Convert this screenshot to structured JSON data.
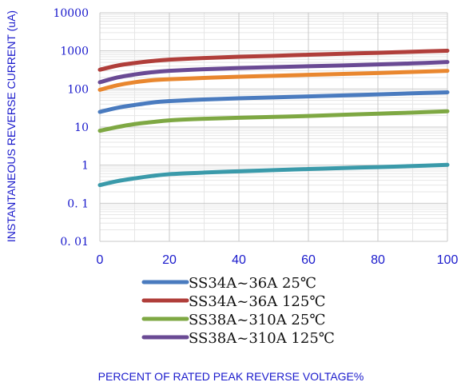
{
  "chart_data": {
    "type": "line",
    "title": "",
    "xlabel": "PERCENT OF RATED PEAK REVERSE VOLTAGE%",
    "ylabel": "INSTANTANEOUS REVERSE CURRENT (uA)",
    "xlim": [
      0,
      100
    ],
    "ylim": [
      0.01,
      10000
    ],
    "yscale": "log",
    "grid": true,
    "legend_position": "bottom",
    "x_ticks": [
      "0",
      "20",
      "40",
      "60",
      "80",
      "100"
    ],
    "y_ticks": [
      "10000",
      "1000",
      "100",
      "10",
      "1",
      "0. 1",
      "0. 01"
    ],
    "x": [
      0,
      5,
      10,
      15,
      20,
      30,
      40,
      50,
      60,
      70,
      80,
      90,
      100
    ],
    "series": [
      {
        "name": "SS34A~36A 25℃",
        "color": "#4a7bbf",
        "values": [
          25,
          32,
          38,
          44,
          48,
          53,
          57,
          60,
          64,
          68,
          72,
          77,
          82
        ],
        "in_legend": true
      },
      {
        "name": "SS34A~36A 125℃",
        "color": "#b03e3a",
        "values": [
          320,
          410,
          480,
          540,
          590,
          650,
          700,
          740,
          790,
          840,
          890,
          950,
          1010
        ],
        "in_legend": true
      },
      {
        "name": "SS38A~310A 25℃",
        "color": "#7ea843",
        "values": [
          8,
          10,
          12,
          13.5,
          15,
          16.5,
          17.5,
          18.5,
          19.5,
          21,
          22.5,
          24,
          26
        ],
        "in_legend": true
      },
      {
        "name": "SS38A~310A 125℃",
        "color": "#6a4a94",
        "values": [
          150,
          200,
          240,
          275,
          300,
          330,
          355,
          375,
          395,
          415,
          440,
          470,
          510
        ],
        "in_legend": true
      },
      {
        "name": "",
        "color": "#e9872f",
        "values": [
          95,
          125,
          150,
          170,
          180,
          195,
          210,
          222,
          235,
          248,
          262,
          280,
          300
        ],
        "in_legend": false
      },
      {
        "name": "",
        "color": "#3a9aaa",
        "values": [
          0.3,
          0.38,
          0.45,
          0.52,
          0.58,
          0.64,
          0.69,
          0.74,
          0.79,
          0.84,
          0.89,
          0.95,
          1.02
        ],
        "in_legend": false
      }
    ]
  }
}
